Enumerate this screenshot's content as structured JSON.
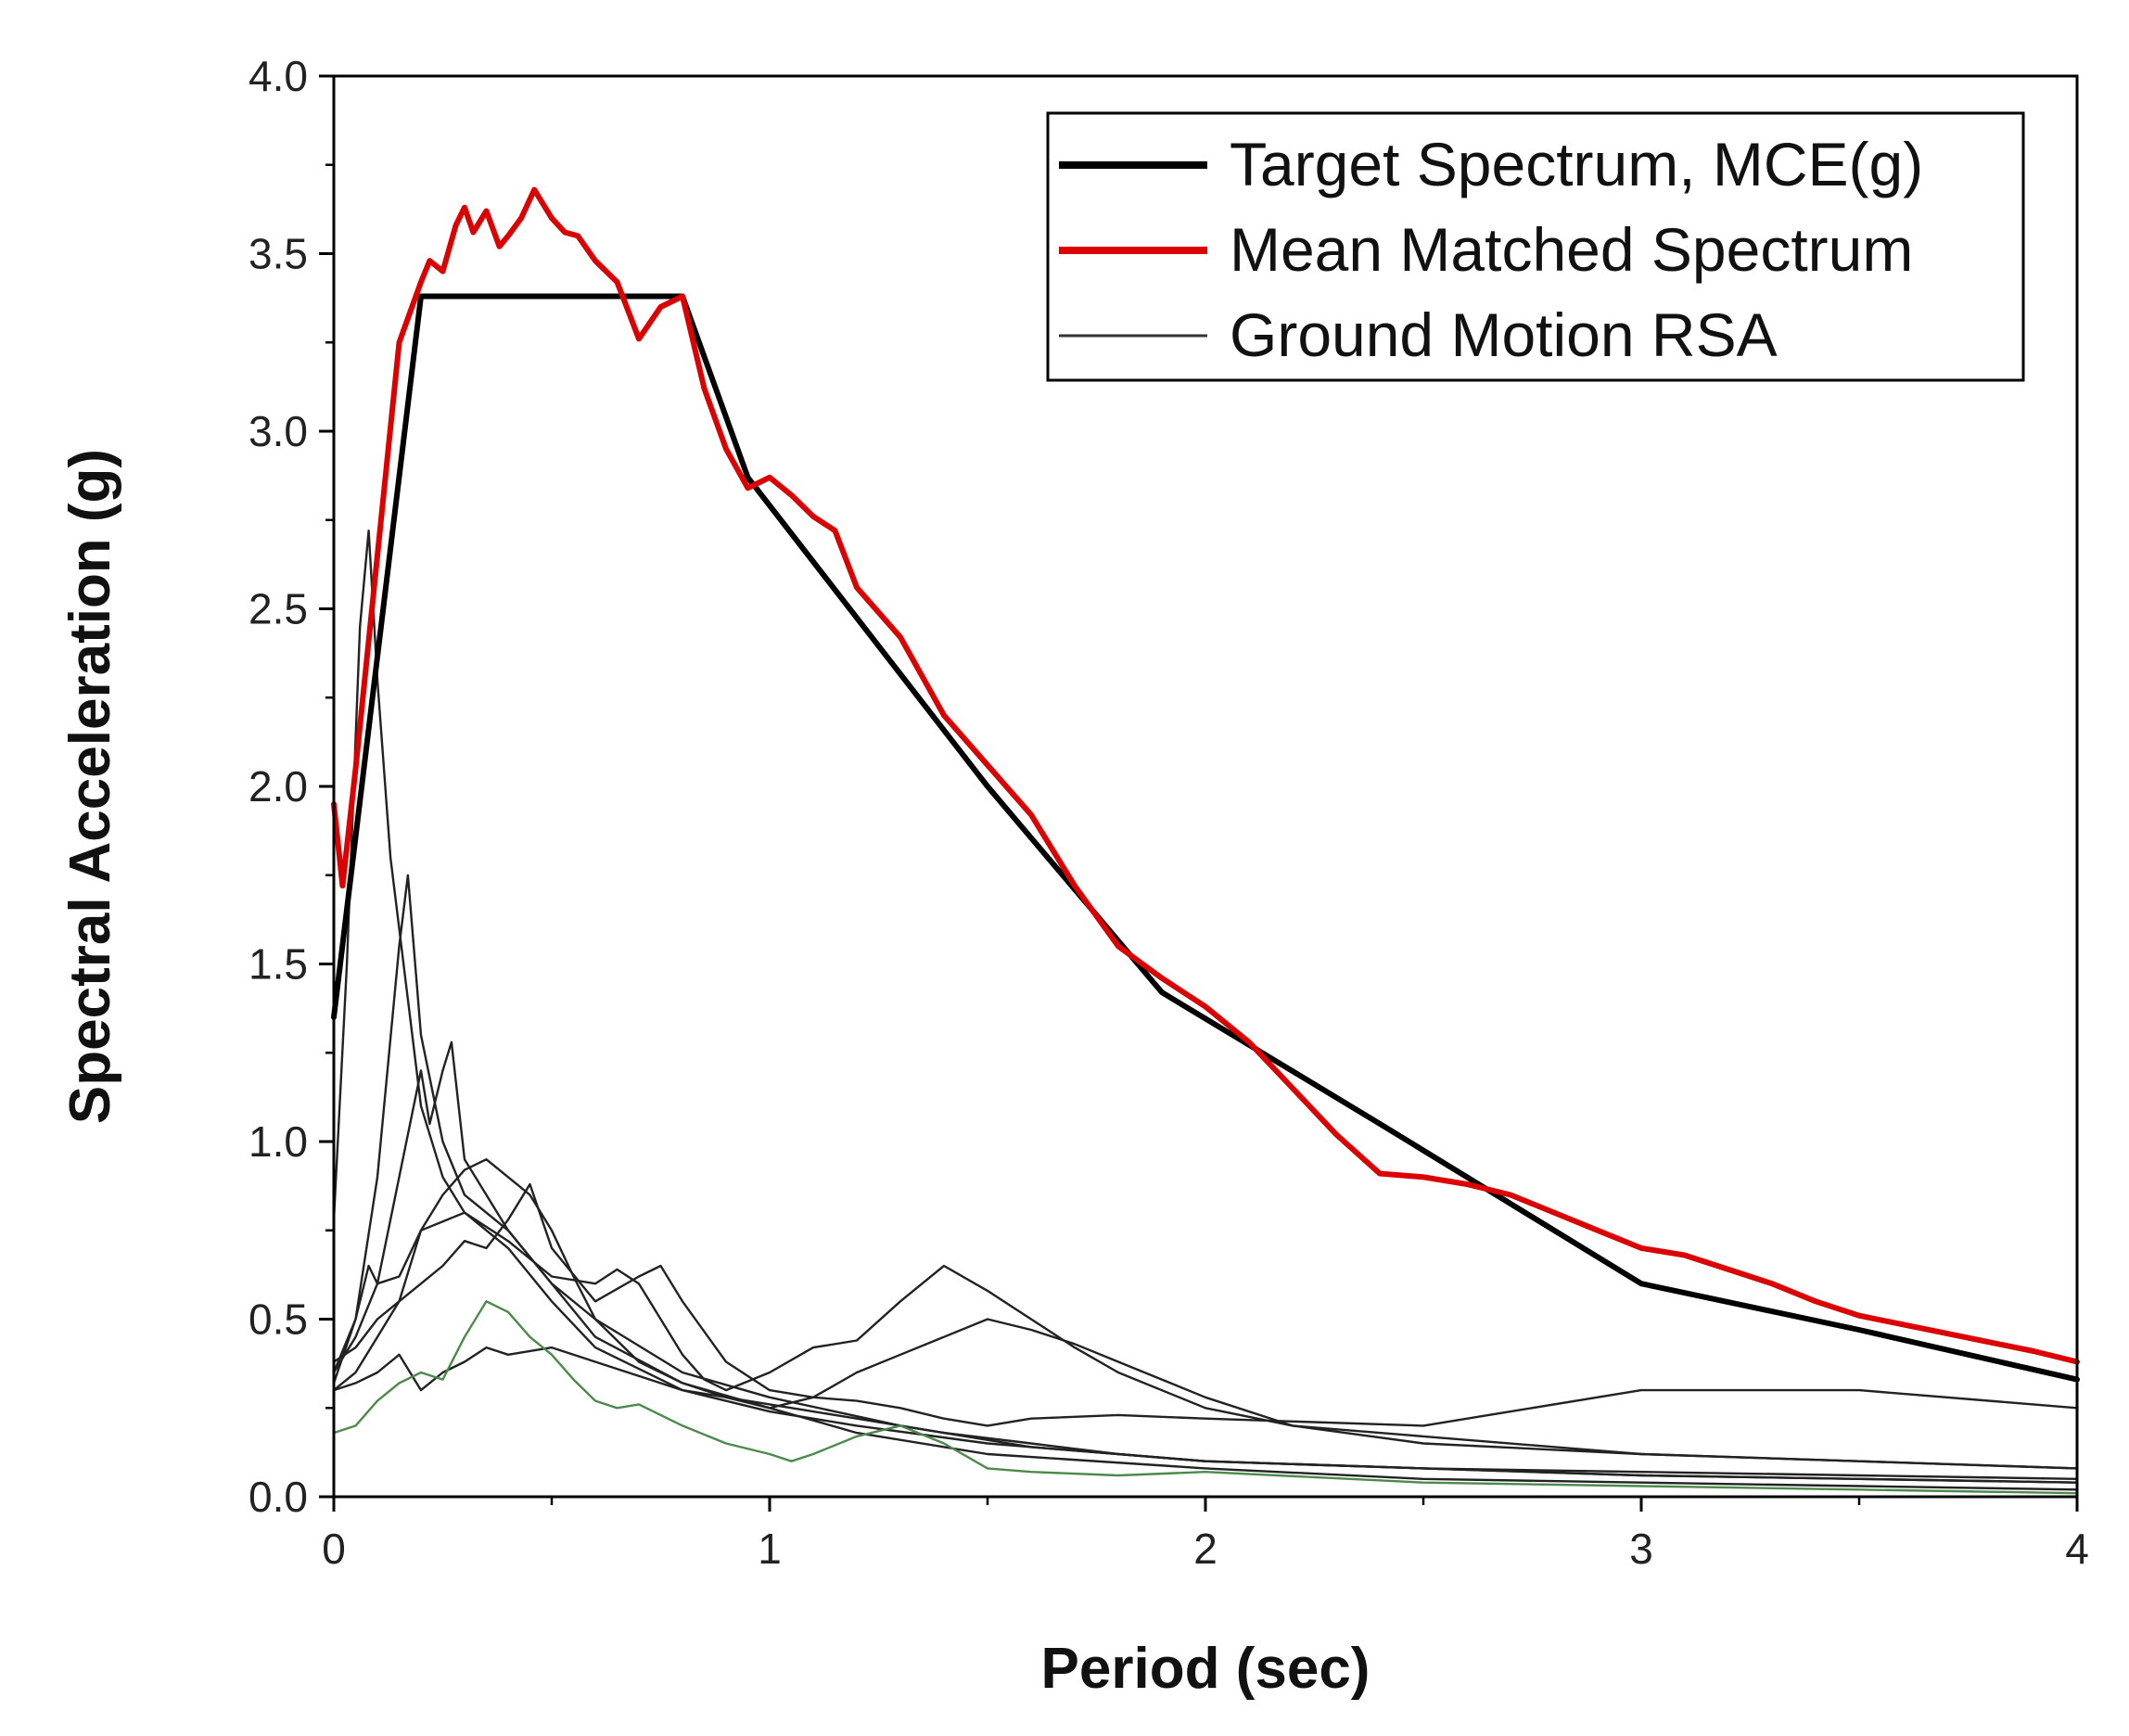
{
  "chart_data": {
    "type": "line",
    "xlabel": "Period (sec)",
    "ylabel": "Spectral Acceleration (g)",
    "xlim": [
      0,
      4
    ],
    "ylim": [
      0,
      4.0
    ],
    "xticks": [
      0,
      1,
      2,
      3,
      4
    ],
    "xtick_labels": [
      "0",
      "1",
      "2",
      "3",
      "4"
    ],
    "yticks": [
      0,
      0.5,
      1.0,
      1.5,
      2.0,
      2.5,
      3.0,
      3.5,
      4.0
    ],
    "ytick_labels": [
      "0.0",
      "0.5",
      "1.0",
      "1.5",
      "2.0",
      "2.5",
      "3.0",
      "3.5",
      "4.0"
    ],
    "grid": false,
    "legend": {
      "placement": "top-right",
      "entries": [
        {
          "label": "Target Spectrum, MCE(g)",
          "color": "#000000",
          "style": "thick"
        },
        {
          "label": "Mean Matched Spectrum",
          "color": "#dd0000",
          "style": "thick"
        },
        {
          "label": "Ground Motion RSA",
          "color": "#333333",
          "style": "thin"
        }
      ]
    },
    "series": [
      {
        "name": "Target Spectrum, MCE(g)",
        "color": "#000000",
        "width": 6,
        "x": [
          0,
          0.2,
          0.8,
          0.95,
          1.5,
          1.9,
          2.4,
          3.0,
          3.5,
          4.0
        ],
        "y": [
          1.35,
          3.38,
          3.38,
          2.87,
          2.0,
          1.42,
          1.05,
          0.6,
          0.47,
          0.33
        ]
      },
      {
        "name": "Mean Matched Spectrum",
        "color": "#dd0000",
        "width": 6,
        "x": [
          0,
          0.02,
          0.05,
          0.1,
          0.15,
          0.2,
          0.22,
          0.25,
          0.28,
          0.3,
          0.32,
          0.35,
          0.38,
          0.4,
          0.43,
          0.46,
          0.5,
          0.53,
          0.56,
          0.6,
          0.65,
          0.7,
          0.75,
          0.8,
          0.85,
          0.9,
          0.95,
          1.0,
          1.05,
          1.1,
          1.15,
          1.2,
          1.3,
          1.4,
          1.5,
          1.6,
          1.7,
          1.8,
          1.9,
          2.0,
          2.1,
          2.2,
          2.3,
          2.4,
          2.5,
          2.6,
          2.7,
          2.8,
          2.9,
          3.0,
          3.1,
          3.2,
          3.3,
          3.4,
          3.5,
          3.7,
          3.9,
          4.0
        ],
        "y": [
          1.95,
          1.72,
          2.05,
          2.65,
          3.25,
          3.42,
          3.48,
          3.45,
          3.58,
          3.63,
          3.56,
          3.62,
          3.52,
          3.55,
          3.6,
          3.68,
          3.6,
          3.56,
          3.55,
          3.48,
          3.42,
          3.26,
          3.35,
          3.38,
          3.12,
          2.95,
          2.84,
          2.87,
          2.82,
          2.76,
          2.72,
          2.56,
          2.42,
          2.2,
          2.06,
          1.92,
          1.72,
          1.55,
          1.46,
          1.38,
          1.28,
          1.15,
          1.02,
          0.91,
          0.9,
          0.88,
          0.85,
          0.8,
          0.75,
          0.7,
          0.68,
          0.64,
          0.6,
          0.55,
          0.51,
          0.46,
          0.41,
          0.38
        ]
      },
      {
        "name": "Ground Motion RSA",
        "color": "#222222",
        "width": 2.4,
        "x": [
          0,
          0.03,
          0.06,
          0.08,
          0.1,
          0.13,
          0.16,
          0.2,
          0.25,
          0.3,
          0.4,
          0.5,
          0.6,
          0.8,
          1.0,
          1.2,
          1.5,
          1.8,
          2.0,
          2.5,
          3.0,
          3.5,
          4.0
        ],
        "y": [
          0.78,
          1.5,
          2.45,
          2.72,
          2.3,
          1.8,
          1.5,
          1.1,
          0.9,
          0.8,
          0.7,
          0.55,
          0.42,
          0.3,
          0.24,
          0.2,
          0.15,
          0.12,
          0.1,
          0.08,
          0.06,
          0.05,
          0.04
        ]
      },
      {
        "name": "Ground Motion RSA",
        "color": "#222222",
        "width": 2.4,
        "x": [
          0,
          0.05,
          0.1,
          0.15,
          0.17,
          0.2,
          0.25,
          0.3,
          0.4,
          0.5,
          0.6,
          0.8,
          1.0,
          1.2,
          1.5,
          2.0,
          2.5,
          3.0,
          3.5,
          4.0
        ],
        "y": [
          0.35,
          0.5,
          0.9,
          1.55,
          1.75,
          1.3,
          1.0,
          0.85,
          0.75,
          0.6,
          0.45,
          0.32,
          0.25,
          0.18,
          0.12,
          0.08,
          0.05,
          0.04,
          0.03,
          0.02
        ]
      },
      {
        "name": "Ground Motion RSA",
        "color": "#222222",
        "width": 2.4,
        "x": [
          0,
          0.05,
          0.1,
          0.15,
          0.2,
          0.22,
          0.25,
          0.27,
          0.3,
          0.35,
          0.4,
          0.5,
          0.6,
          0.8,
          1.0,
          1.3,
          1.6,
          2.0,
          2.5,
          3.0,
          3.5,
          4.0
        ],
        "y": [
          0.35,
          0.45,
          0.6,
          0.9,
          1.2,
          1.05,
          1.2,
          1.28,
          0.95,
          0.85,
          0.75,
          0.6,
          0.5,
          0.35,
          0.28,
          0.2,
          0.14,
          0.1,
          0.08,
          0.06,
          0.05,
          0.04
        ]
      },
      {
        "name": "Ground Motion RSA",
        "color": "#222222",
        "width": 2.4,
        "x": [
          0,
          0.05,
          0.1,
          0.15,
          0.2,
          0.25,
          0.3,
          0.35,
          0.4,
          0.45,
          0.5,
          0.55,
          0.6,
          0.7,
          0.8,
          0.9,
          1.0,
          1.1,
          1.2,
          1.3,
          1.4,
          1.5,
          1.6,
          1.7,
          1.8,
          1.9,
          2.0,
          2.2,
          2.5,
          3.0,
          3.5,
          4.0
        ],
        "y": [
          0.3,
          0.35,
          0.45,
          0.55,
          0.75,
          0.85,
          0.92,
          0.95,
          0.9,
          0.85,
          0.75,
          0.62,
          0.5,
          0.38,
          0.32,
          0.28,
          0.25,
          0.28,
          0.35,
          0.4,
          0.45,
          0.5,
          0.47,
          0.43,
          0.38,
          0.33,
          0.28,
          0.2,
          0.15,
          0.12,
          0.1,
          0.08
        ]
      },
      {
        "name": "Ground Motion RSA",
        "color": "#222222",
        "width": 2.4,
        "x": [
          0,
          0.05,
          0.08,
          0.1,
          0.15,
          0.2,
          0.3,
          0.4,
          0.5,
          0.6,
          0.65,
          0.7,
          0.75,
          0.8,
          0.85,
          0.9,
          1.0,
          1.1,
          1.2,
          1.3,
          1.4,
          1.5,
          1.6,
          1.7,
          1.8,
          2.0,
          2.2,
          2.5,
          3.0,
          3.5,
          4.0
        ],
        "y": [
          0.32,
          0.5,
          0.65,
          0.6,
          0.62,
          0.75,
          0.8,
          0.72,
          0.62,
          0.6,
          0.64,
          0.6,
          0.5,
          0.4,
          0.33,
          0.3,
          0.35,
          0.42,
          0.44,
          0.55,
          0.65,
          0.58,
          0.5,
          0.42,
          0.35,
          0.25,
          0.2,
          0.17,
          0.12,
          0.1,
          0.08
        ]
      },
      {
        "name": "Ground Motion RSA",
        "color": "#222222",
        "width": 2.4,
        "x": [
          0,
          0.05,
          0.1,
          0.15,
          0.2,
          0.25,
          0.3,
          0.35,
          0.4,
          0.45,
          0.5,
          0.6,
          0.7,
          0.75,
          0.8,
          0.9,
          1.0,
          1.1,
          1.2,
          1.3,
          1.4,
          1.5,
          1.6,
          1.8,
          2.0,
          2.5,
          3.0,
          3.5,
          4.0
        ],
        "y": [
          0.38,
          0.42,
          0.5,
          0.55,
          0.6,
          0.65,
          0.72,
          0.7,
          0.78,
          0.88,
          0.7,
          0.55,
          0.62,
          0.65,
          0.55,
          0.38,
          0.3,
          0.28,
          0.27,
          0.25,
          0.22,
          0.2,
          0.22,
          0.23,
          0.22,
          0.2,
          0.3,
          0.3,
          0.25
        ]
      },
      {
        "name": "Ground Motion RSA",
        "color": "#222222",
        "width": 2.4,
        "x": [
          0,
          0.05,
          0.1,
          0.15,
          0.2,
          0.25,
          0.3,
          0.35,
          0.4,
          0.5,
          0.6,
          0.8,
          1.0,
          1.2,
          1.4,
          1.6,
          1.8,
          2.0,
          2.5,
          3.0,
          3.5,
          4.0
        ],
        "y": [
          0.3,
          0.32,
          0.35,
          0.4,
          0.3,
          0.35,
          0.38,
          0.42,
          0.4,
          0.42,
          0.38,
          0.3,
          0.26,
          0.22,
          0.18,
          0.15,
          0.12,
          0.1,
          0.08,
          0.07,
          0.06,
          0.05
        ]
      },
      {
        "name": "Ground Motion RSA",
        "color": "#4c8a4c",
        "width": 2.4,
        "x": [
          0,
          0.05,
          0.1,
          0.15,
          0.2,
          0.25,
          0.3,
          0.35,
          0.4,
          0.45,
          0.5,
          0.55,
          0.6,
          0.65,
          0.7,
          0.8,
          0.9,
          1.0,
          1.05,
          1.1,
          1.2,
          1.3,
          1.4,
          1.5,
          1.6,
          1.8,
          2.0,
          2.5,
          3.0,
          3.5,
          4.0
        ],
        "y": [
          0.18,
          0.2,
          0.27,
          0.32,
          0.35,
          0.33,
          0.45,
          0.55,
          0.52,
          0.45,
          0.4,
          0.33,
          0.27,
          0.25,
          0.26,
          0.2,
          0.15,
          0.12,
          0.1,
          0.12,
          0.17,
          0.2,
          0.15,
          0.08,
          0.07,
          0.06,
          0.07,
          0.04,
          0.03,
          0.02,
          0.01
        ]
      }
    ]
  }
}
